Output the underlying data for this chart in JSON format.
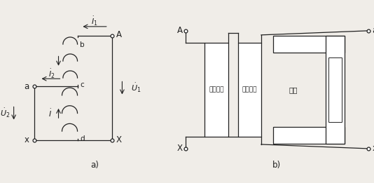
{
  "bg_color": "#f0ede8",
  "line_color": "#222222",
  "fig_width": 5.34,
  "fig_height": 2.61,
  "text_serial": "串联绕组",
  "text_common": "公共绕组",
  "text_core": "鐵心"
}
